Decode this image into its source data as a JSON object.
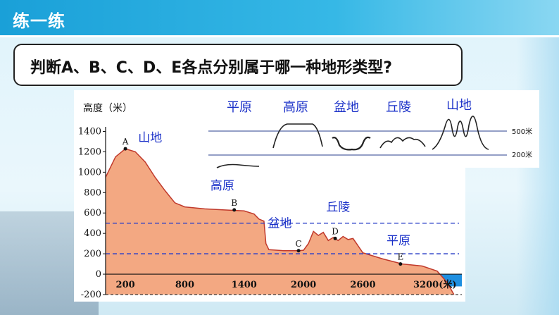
{
  "header": {
    "title": "练一练"
  },
  "question": {
    "text": "判断A、B、C、D、E各点分别属于哪一种地形类型?"
  },
  "legend_panel": {
    "types": [
      {
        "label": "平原",
        "icon": "plain-profile-icon"
      },
      {
        "label": "高原",
        "icon": "plateau-profile-icon"
      },
      {
        "label": "盆地",
        "icon": "basin-profile-icon"
      },
      {
        "label": "丘陵",
        "icon": "hill-profile-icon"
      },
      {
        "label": "山地",
        "icon": "mountain-profile-icon"
      }
    ],
    "line_500": "500米",
    "line_200": "200米"
  },
  "chart_data": {
    "type": "area",
    "ylabel": "高度（米）",
    "x_ticks": [
      "200",
      "800",
      "1400",
      "2000",
      "2600",
      "3200(米)"
    ],
    "y_ticks": [
      "1400",
      "1200",
      "1000",
      "800",
      "600",
      "400",
      "200",
      "0",
      "-200"
    ],
    "ylim": [
      -200,
      1500
    ],
    "xlim": [
      0,
      3600
    ],
    "reference_lines": [
      500,
      200
    ],
    "profile": [
      [
        0,
        950
      ],
      [
        100,
        1150
      ],
      [
        200,
        1230
      ],
      [
        300,
        1200
      ],
      [
        400,
        1100
      ],
      [
        500,
        950
      ],
      [
        600,
        820
      ],
      [
        700,
        700
      ],
      [
        800,
        660
      ],
      [
        1000,
        640
      ],
      [
        1200,
        630
      ],
      [
        1400,
        620
      ],
      [
        1500,
        590
      ],
      [
        1550,
        540
      ],
      [
        1600,
        520
      ],
      [
        1620,
        300
      ],
      [
        1650,
        240
      ],
      [
        1800,
        230
      ],
      [
        1950,
        230
      ],
      [
        2000,
        235
      ],
      [
        2050,
        300
      ],
      [
        2100,
        420
      ],
      [
        2150,
        380
      ],
      [
        2200,
        410
      ],
      [
        2250,
        330
      ],
      [
        2300,
        360
      ],
      [
        2350,
        330
      ],
      [
        2400,
        370
      ],
      [
        2450,
        340
      ],
      [
        2500,
        350
      ],
      [
        2550,
        280
      ],
      [
        2600,
        210
      ],
      [
        2800,
        150
      ],
      [
        3000,
        100
      ],
      [
        3200,
        80
      ],
      [
        3350,
        30
      ],
      [
        3450,
        -80
      ],
      [
        3520,
        -200
      ]
    ],
    "points": [
      {
        "label": "A",
        "x": 200,
        "y": 1230
      },
      {
        "label": "B",
        "x": 1300,
        "y": 630
      },
      {
        "label": "C",
        "x": 1950,
        "y": 230
      },
      {
        "label": "D",
        "x": 2320,
        "y": 350
      },
      {
        "label": "E",
        "x": 2980,
        "y": 100
      }
    ],
    "region_labels": [
      {
        "text": "山地",
        "x": 450,
        "y": 1300
      },
      {
        "text": "高原",
        "x": 1180,
        "y": 830
      },
      {
        "text": "盆地",
        "x": 1760,
        "y": 460
      },
      {
        "text": "丘陵",
        "x": 2350,
        "y": 620
      },
      {
        "text": "平原",
        "x": 2960,
        "y": 290
      }
    ],
    "fill_color": "#f3a882",
    "stroke_color": "#c0392b",
    "sea_color": "#1f8fe0"
  }
}
